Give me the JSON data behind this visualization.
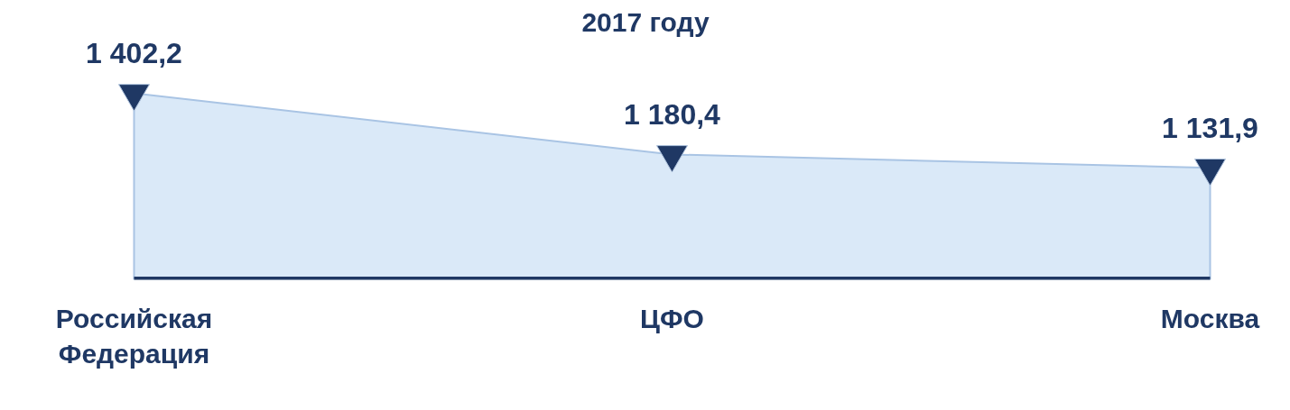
{
  "chart_data": {
    "type": "area",
    "title": "2017 году",
    "categories": [
      "Российская Федерация",
      "ЦФО",
      "Москва"
    ],
    "series": [
      {
        "color": "#dae9f8",
        "values": [
          1402.2,
          1180.4,
          1131.9
        ],
        "value_labels": [
          "1 402,2",
          "1 180,4",
          "1 131,9"
        ]
      }
    ],
    "marker": "triangle",
    "grid": false
  }
}
